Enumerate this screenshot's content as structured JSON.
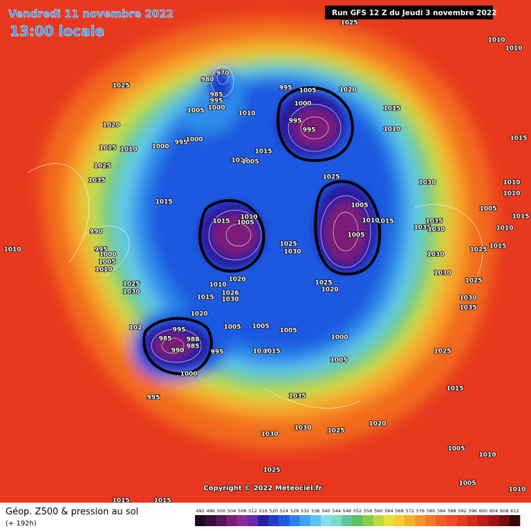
{
  "header": {
    "date_line": "Vendredi 11 novembre 2022",
    "time_line": "13:00 locale",
    "run": "Run GFS 12 Z du Jeudi 3 novembre 2022"
  },
  "footer": {
    "title": "Géop. Z500 & pression au sol",
    "lead": "(+ 192h)",
    "copyright": "Copyright © 2022 Meteociel.fr"
  },
  "colorbar": {
    "ticks": [
      492,
      496,
      500,
      504,
      508,
      512,
      516,
      520,
      524,
      528,
      532,
      536,
      540,
      544,
      548,
      552,
      556,
      560,
      564,
      568,
      572,
      576,
      580,
      584,
      588,
      592,
      596,
      600,
      604,
      608,
      612
    ],
    "colors": [
      "#1c0b1c",
      "#3a0f3a",
      "#5a145a",
      "#7a1e78",
      "#8e2a96",
      "#6a2ab0",
      "#2a1ea0",
      "#1e3cc8",
      "#1e5ae6",
      "#2a82f0",
      "#3aa6f2",
      "#5cc4f0",
      "#86dcf0",
      "#7ed8c8",
      "#5ec89a",
      "#5cc060",
      "#8ccc4a",
      "#bcd840",
      "#e6e03a",
      "#f6cc30",
      "#f8b02a",
      "#f6922a",
      "#f4782a",
      "#f25e26",
      "#ee4a24",
      "#e63a20",
      "#d42a1c",
      "#bc1e18",
      "#a01414",
      "#780c0c",
      "#3a0606"
    ]
  },
  "pressure_labels": [
    1025,
    1010,
    1010,
    1025,
    970,
    980,
    985,
    995,
    1000,
    995,
    1005,
    1020,
    1000,
    1015,
    1005,
    1010,
    1020,
    995,
    995,
    1010,
    1015,
    1015,
    1010,
    1000,
    995,
    1000,
    1015,
    1010,
    1005,
    1025,
    1025,
    1035,
    1030,
    1010,
    1010,
    1015,
    1005,
    1005,
    1015,
    1010,
    1005,
    1015,
    1010,
    1035,
    1035,
    1030,
    1015,
    1010,
    990,
    1005,
    1010,
    995,
    1000,
    1005,
    1010,
    1025,
    1030,
    1025,
    1015,
    1030,
    1025,
    1030,
    1010,
    1020,
    1025,
    1020,
    1025,
    1030,
    1030,
    1035,
    1026,
    1030,
    1015,
    1020,
    1005,
    1005,
    1005,
    1000,
    985,
    995,
    988,
    985,
    990,
    1005,
    1010,
    1015,
    995,
    1000,
    1025,
    1015,
    995,
    1035,
    1030,
    1025,
    1020,
    1030,
    1005,
    1010,
    1005,
    1025,
    1010,
    1015,
    1015,
    102
  ]
}
